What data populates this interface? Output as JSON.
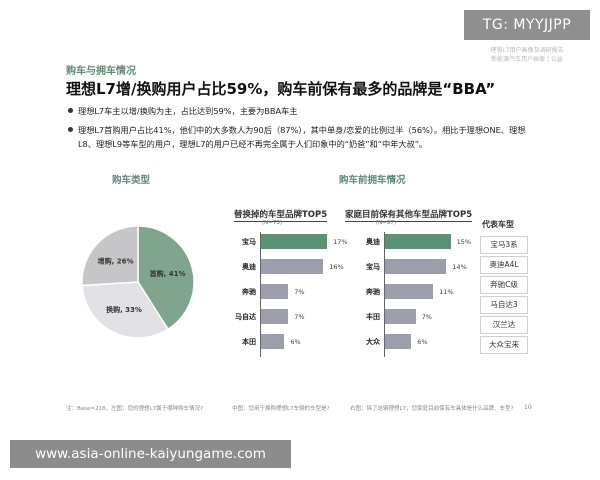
{
  "watermark_tg": "TG: MYYJJPP",
  "brand_lines": [
    "理想L7用户画像及调研报告",
    "新能源汽车用户画像 | 公益"
  ],
  "section": "购车与拥车情况",
  "title": "理想L7增/换购用户占比59%，购车前保有最多的品牌是“BBA”",
  "bullets": [
    "理想L7车主以增/换购为主，占比达到59%，主要为BBA车主",
    "理想L7首购用户占比41%，他们中的大多数人为90后（87%），其中单身/恋爱的比例过半（56%）。相比于理想ONE、理想L8、理想L9等车型的用户，理想L7的用户已经不再完全属于人们印象中的“奶爸”和“中年大叔”。"
  ],
  "purchase_type_title": "购车类型",
  "pre_purchase_title": "购车前拥车情况",
  "chart_data": [
    {
      "type": "pie",
      "slices": [
        {
          "label": "首购",
          "value": 41,
          "text": "首购, 41%",
          "color": "#7fa58f"
        },
        {
          "label": "换购",
          "value": 33,
          "text": "换购, 33%",
          "color": "#e2e2e6"
        },
        {
          "label": "增购",
          "value": 26,
          "text": "增购, 26%",
          "color": "#c6c6c8"
        }
      ]
    },
    {
      "type": "bar",
      "orientation": "horizontal",
      "title": "替换掉的车型品牌TOP5",
      "subtitle": "(N=73)",
      "categories": [
        "宝马",
        "奥迪",
        "奔驰",
        "马自达",
        "本田"
      ],
      "values": [
        17,
        16,
        7,
        7,
        6
      ],
      "value_labels": [
        "17%",
        "16%",
        "7%",
        "7%",
        "6%"
      ],
      "xlim": [
        0,
        18
      ],
      "colors": [
        "#5a9272",
        "#9c9fab",
        "#9c9fab",
        "#9c9fab",
        "#9c9fab"
      ]
    },
    {
      "type": "bar",
      "orientation": "horizontal",
      "title": "家庭目前保有其他车型品牌TOP5",
      "subtitle": "(N=97)",
      "categories": [
        "奥迪",
        "宝马",
        "奔驰",
        "丰田",
        "大众"
      ],
      "values": [
        15,
        14,
        11,
        7,
        6
      ],
      "value_labels": [
        "15%",
        "14%",
        "11%",
        "7%",
        "6%"
      ],
      "xlim": [
        0,
        16
      ],
      "colors": [
        "#5a9272",
        "#9c9fab",
        "#9c9fab",
        "#9c9fab",
        "#9c9fab"
      ]
    }
  ],
  "legend_title": "代表车型",
  "representative_models": [
    "宝马3系",
    "奥迪A4L",
    "奔驰C级",
    "马自达3",
    "汉兰达",
    "大众宝来"
  ],
  "footnotes": [
    "注：Base=218，左图：您的理想L7属于哪种购车情况?",
    "中图：您用于换购理想L7车辆的车型是?",
    "右图：除了这辆理想L7，您家庭目前保有车具体是什么品牌、车型?"
  ],
  "page_number": "10",
  "watermark_site": "www.asia-online-kaiyungame.com"
}
